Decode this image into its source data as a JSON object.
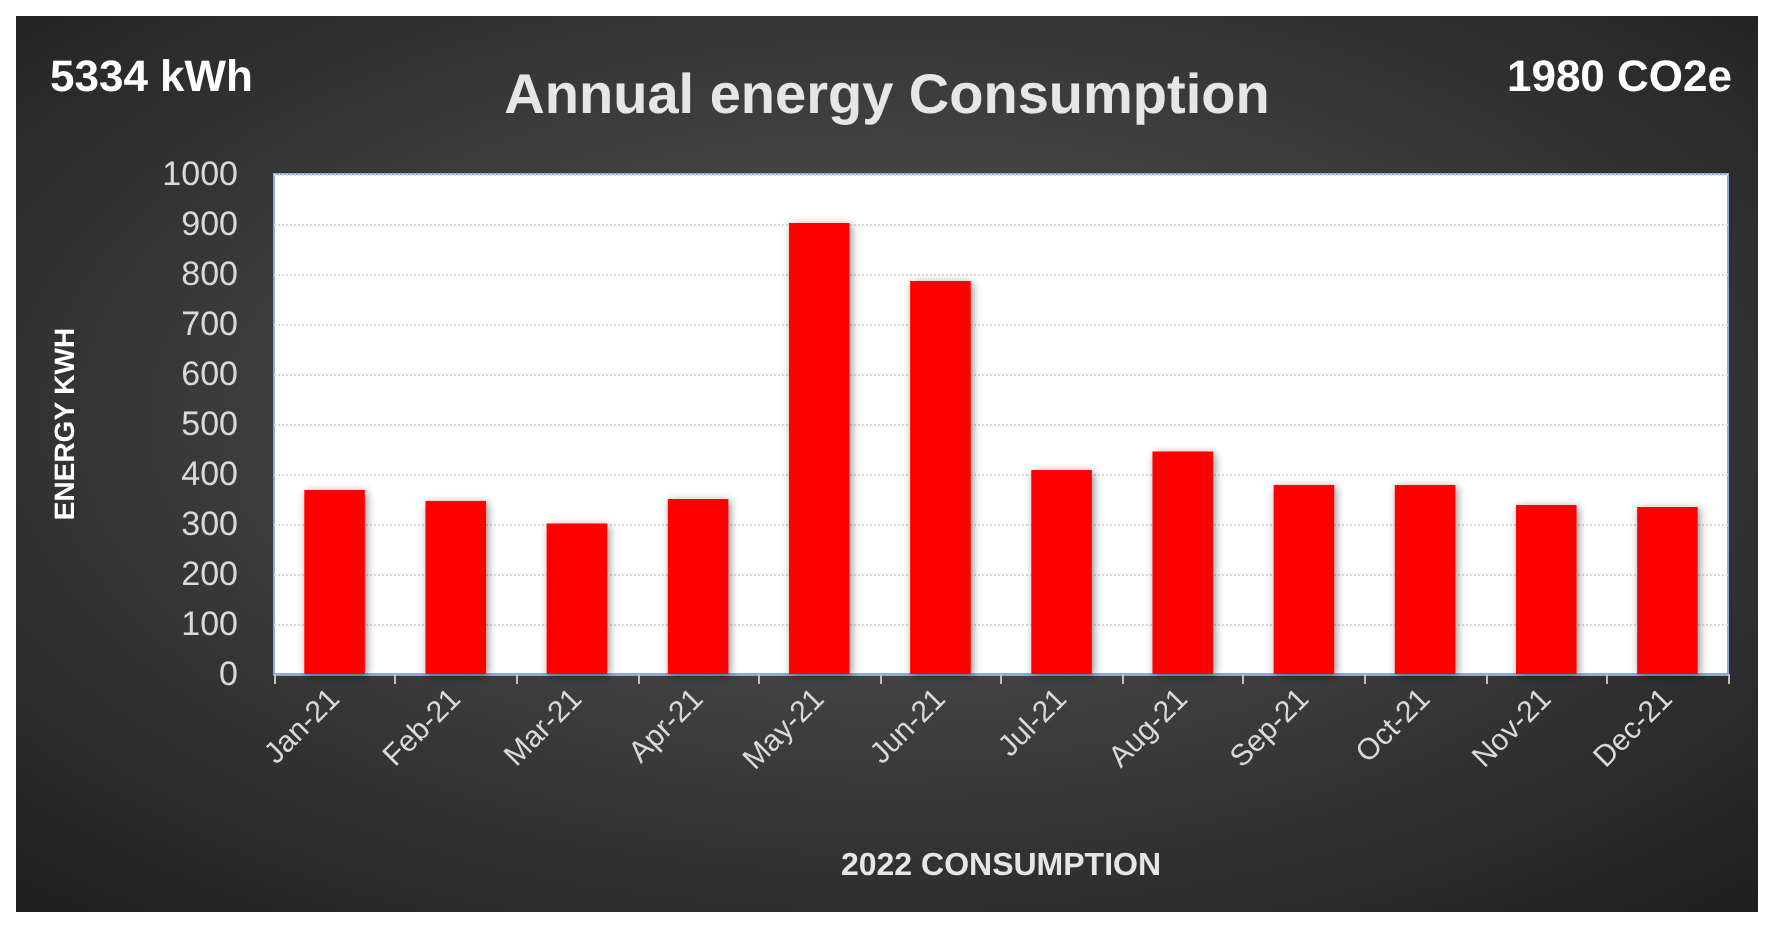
{
  "chart_data": {
    "type": "bar",
    "title": "Annual energy Consumption",
    "xlabel": "2022 CONSUMPTION",
    "ylabel": "ENERGY KWH",
    "annotations": [
      "5334 kWh",
      "1980 CO2e"
    ],
    "categories": [
      "Jan-21",
      "Feb-21",
      "Mar-21",
      "Apr-21",
      "May-21",
      "Jun-21",
      "Jul-21",
      "Aug-21",
      "Sep-21",
      "Oct-21",
      "Nov-21",
      "Dec-21"
    ],
    "values": [
      368,
      346,
      301,
      350,
      902,
      786,
      408,
      445,
      378,
      378,
      338,
      334
    ],
    "color": "#ff0000",
    "ylim": [
      0,
      1000
    ],
    "yticks": [
      0,
      100,
      200,
      300,
      400,
      500,
      600,
      700,
      800,
      900,
      1000
    ],
    "grid": "y"
  }
}
